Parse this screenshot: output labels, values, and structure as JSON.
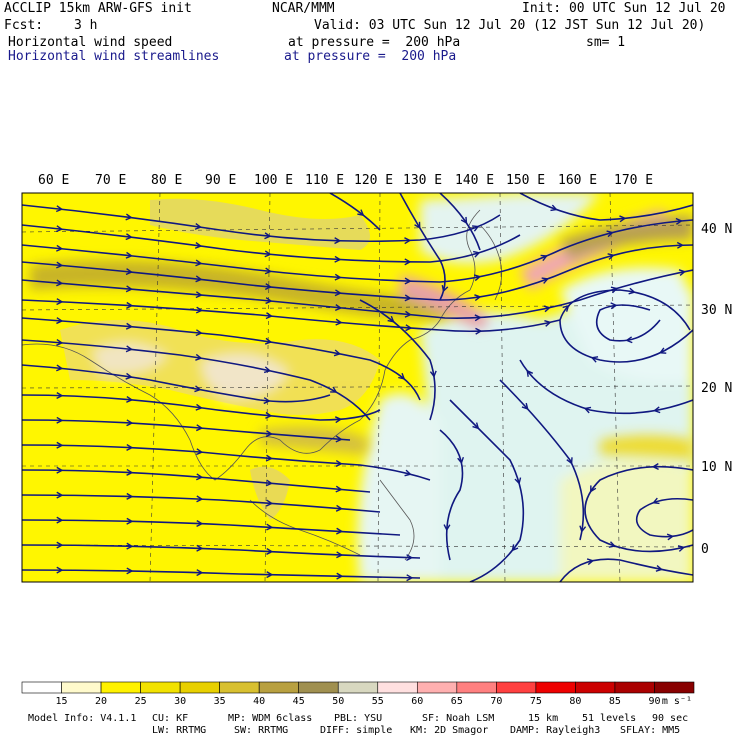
{
  "header": {
    "model_title": "ACCLIP 15km ARW-GFS init",
    "center": "NCAR/MMM",
    "init": "Init: 00 UTC Sun 12 Jul 20",
    "fcst_label": "Fcst:",
    "fcst_value": "3 h",
    "valid": "Valid: 03 UTC Sun 12 Jul 20 (12 JST Sun 12 Jul 20)",
    "field1_name": "Horizontal wind speed",
    "field1_level": "at pressure =  200 hPa",
    "field1_smooth": "sm= 1",
    "field2_name": "Horizontal wind streamlines",
    "field2_level": "at pressure =  200 hPa"
  },
  "map": {
    "lon_labels": [
      "60 E",
      "70 E",
      "80 E",
      "90 E",
      "100 E",
      "110 E",
      "120 E",
      "130 E",
      "140 E",
      "150 E",
      "160 E",
      "170 E"
    ],
    "lat_labels": [
      "40 N",
      "30 N",
      "20 N",
      "10 N",
      "0"
    ],
    "colors": {
      "land": "#d9c8a0",
      "ocean": "#ffffff",
      "streamline": "#101880",
      "coast": "#444444"
    }
  },
  "colorbar": {
    "levels": [
      "15",
      "20",
      "25",
      "30",
      "35",
      "40",
      "45",
      "50",
      "55",
      "60",
      "65",
      "70",
      "75",
      "80",
      "85",
      "90"
    ],
    "unit": "m s⁻¹",
    "colors": [
      "#ffffff",
      "#fffacc",
      "#fff200",
      "#f2e200",
      "#e8d000",
      "#d8c030",
      "#b8a040",
      "#a09050",
      "#d8d8c0",
      "#ffe0e0",
      "#ffb0b0",
      "#ff8080",
      "#ff4040",
      "#ee0000",
      "#cc0000",
      "#aa0000",
      "#880000"
    ]
  },
  "footer": {
    "model_info": "Model Info: V4.1.1",
    "cu": "CU: KF",
    "mp": "MP: WDM 6class",
    "pbl": "PBL: YSU",
    "sf": "SF: Noah LSM",
    "res": "15 km",
    "levels": "51 levels",
    "dt": "90 sec",
    "lw": "LW: RRTMG",
    "sw": "SW: RRTMG",
    "diff": "DIFF: simple",
    "km": "KM: 2D Smagor",
    "damp": "DAMP: Rayleigh3",
    "sflay": "SFLAY: MM5"
  }
}
